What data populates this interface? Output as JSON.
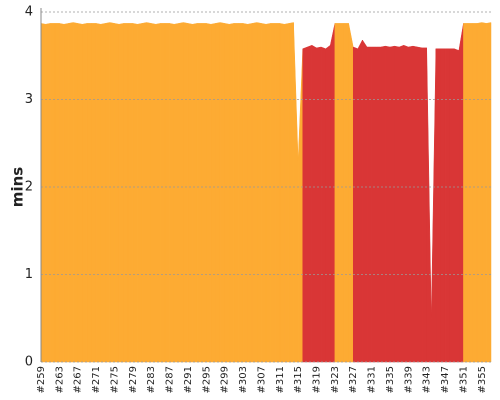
{
  "chart_data": {
    "type": "area",
    "y_label": "mins",
    "categories": [
      "#259",
      null,
      null,
      null,
      "#263",
      null,
      null,
      null,
      "#267",
      null,
      null,
      null,
      "#271",
      null,
      null,
      null,
      "#275",
      null,
      null,
      null,
      "#279",
      null,
      null,
      null,
      "#283",
      null,
      null,
      null,
      "#287",
      null,
      null,
      null,
      "#291",
      null,
      null,
      null,
      "#295",
      null,
      null,
      null,
      "#299",
      null,
      null,
      null,
      "#303",
      null,
      null,
      null,
      "#307",
      null,
      null,
      null,
      "#311",
      null,
      null,
      null,
      "#315",
      null,
      null,
      null,
      "#319",
      null,
      null,
      null,
      "#323",
      null,
      null,
      null,
      "#327",
      null,
      null,
      null,
      "#331",
      null,
      null,
      null,
      "#335",
      null,
      null,
      null,
      "#339",
      null,
      null,
      null,
      "#343",
      null,
      null,
      null,
      "#347",
      null,
      null,
      null,
      "#351",
      null,
      null,
      null,
      "#355",
      null,
      null
    ],
    "values": [
      3.87,
      3.86,
      3.87,
      3.87,
      3.87,
      3.86,
      3.87,
      3.88,
      3.87,
      3.86,
      3.87,
      3.87,
      3.87,
      3.86,
      3.87,
      3.88,
      3.87,
      3.86,
      3.87,
      3.87,
      3.87,
      3.86,
      3.87,
      3.88,
      3.87,
      3.86,
      3.87,
      3.87,
      3.87,
      3.86,
      3.87,
      3.88,
      3.87,
      3.86,
      3.87,
      3.87,
      3.87,
      3.86,
      3.87,
      3.88,
      3.87,
      3.86,
      3.87,
      3.87,
      3.87,
      3.86,
      3.87,
      3.88,
      3.87,
      3.86,
      3.87,
      3.87,
      3.87,
      3.86,
      3.87,
      3.88,
      2.3,
      3.58,
      3.6,
      3.62,
      3.59,
      3.6,
      3.58,
      3.62,
      3.87,
      3.87,
      3.87,
      3.87,
      3.6,
      3.58,
      3.68,
      3.6,
      3.6,
      3.6,
      3.6,
      3.61,
      3.6,
      3.61,
      3.6,
      3.62,
      3.6,
      3.61,
      3.6,
      3.59,
      3.59,
      0.5,
      3.58,
      3.58,
      3.58,
      3.58,
      3.58,
      3.56,
      3.87,
      3.87,
      3.87,
      3.87,
      3.88,
      3.87,
      3.88
    ],
    "colors": [
      "#fdab33",
      "#fdab33",
      "#fdab33",
      "#fdab33",
      "#fdab33",
      "#fdab33",
      "#fdab33",
      "#fdab33",
      "#fdab33",
      "#fdab33",
      "#fdab33",
      "#fdab33",
      "#fdab33",
      "#fdab33",
      "#fdab33",
      "#fdab33",
      "#fdab33",
      "#fdab33",
      "#fdab33",
      "#fdab33",
      "#fdab33",
      "#fdab33",
      "#fdab33",
      "#fdab33",
      "#fdab33",
      "#fdab33",
      "#fdab33",
      "#fdab33",
      "#fdab33",
      "#fdab33",
      "#fdab33",
      "#fdab33",
      "#fdab33",
      "#fdab33",
      "#fdab33",
      "#fdab33",
      "#fdab33",
      "#fdab33",
      "#fdab33",
      "#fdab33",
      "#fdab33",
      "#fdab33",
      "#fdab33",
      "#fdab33",
      "#fdab33",
      "#fdab33",
      "#fdab33",
      "#fdab33",
      "#fdab33",
      "#fdab33",
      "#fdab33",
      "#fdab33",
      "#fdab33",
      "#fdab33",
      "#fdab33",
      "#fdab33",
      "#fdab33",
      "#d93636",
      "#d93636",
      "#d93636",
      "#d93636",
      "#d93636",
      "#d93636",
      "#d93636",
      "#fdab33",
      "#fdab33",
      "#fdab33",
      "#fdab33",
      "#d93636",
      "#d93636",
      "#d93636",
      "#d93636",
      "#d93636",
      "#d93636",
      "#d93636",
      "#d93636",
      "#d93636",
      "#d93636",
      "#d93636",
      "#d93636",
      "#d93636",
      "#d93636",
      "#d93636",
      "#d93636",
      "#d93636",
      "#d93636",
      "#d93636",
      "#d93636",
      "#d93636",
      "#d93636",
      "#d93636",
      "#d93636",
      "#fdab33",
      "#fdab33",
      "#fdab33",
      "#fdab33",
      "#fdab33",
      "#fdab33",
      "#fdab33"
    ],
    "ylim": [
      0,
      4
    ],
    "yticks": [
      0,
      1,
      2,
      3,
      4
    ],
    "grid": true
  }
}
